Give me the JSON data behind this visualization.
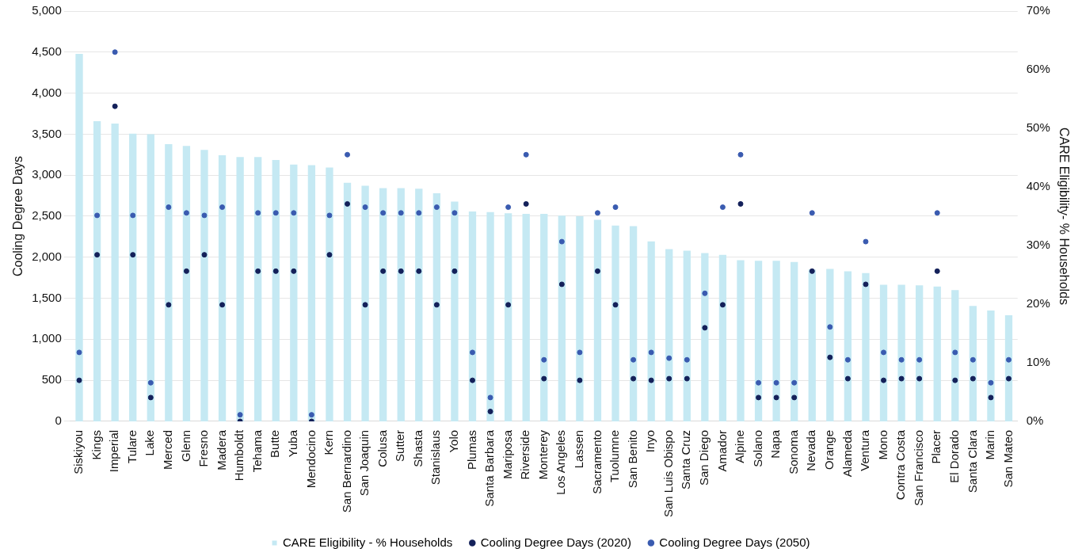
{
  "chart_data": {
    "type": "bar",
    "ylabel": "Cooling Degree Days",
    "y2label": "CARE Eligibility- % Households",
    "categories": [
      "Siskiyou",
      "Kings",
      "Imperial",
      "Tulare",
      "Lake",
      "Merced",
      "Glenn",
      "Fresno",
      "Madera",
      "Humboldt",
      "Tehama",
      "Butte",
      "Yuba",
      "Mendocino",
      "Kern",
      "San Bernardino",
      "San Joaquin",
      "Colusa",
      "Sutter",
      "Shasta",
      "Stanislaus",
      "Yolo",
      "Plumas",
      "Santa Barbara",
      "Mariposa",
      "Riverside",
      "Monterey",
      "Los Angeles",
      "Lassen",
      "Sacramento",
      "Tuolumne",
      "San Benito",
      "Inyo",
      "San Luis Obispo",
      "Santa Cruz",
      "San Diego",
      "Amador",
      "Alpine",
      "Solano",
      "Napa",
      "Sonoma",
      "Nevada",
      "Orange",
      "Alameda",
      "Ventura",
      "Mono",
      "Contra Costa",
      "San Francisco",
      "Placer",
      "El Dorado",
      "Santa Clara",
      "Marin",
      "San Mateo"
    ],
    "series": [
      {
        "name": "CARE Eligibility - % Households",
        "type": "bar",
        "axis": "y2",
        "color": "#c5e9f3",
        "values": [
          62.7,
          51.2,
          50.8,
          49.1,
          49.0,
          47.3,
          47.0,
          46.3,
          45.4,
          45.1,
          45.1,
          44.6,
          43.8,
          43.7,
          43.3,
          40.7,
          40.2,
          39.8,
          39.8,
          39.7,
          38.9,
          37.5,
          35.8,
          35.7,
          35.5,
          35.4,
          35.4,
          35.1,
          35.0,
          34.4,
          33.4,
          33.3,
          30.7,
          29.4,
          29.1,
          28.7,
          28.4,
          27.5,
          27.4,
          27.4,
          27.2,
          25.9,
          26.0,
          25.6,
          25.3,
          23.3,
          23.3,
          23.2,
          23.0,
          22.4,
          19.7,
          18.9,
          18.1
        ]
      },
      {
        "name": "Cooling Degree Days (2020)",
        "type": "scatter",
        "color": "#14215a",
        "values": [
          500,
          2030,
          3840,
          2030,
          290,
          1420,
          1830,
          2030,
          1420,
          0,
          1830,
          1830,
          1830,
          0,
          2030,
          2650,
          1420,
          1830,
          1830,
          1830,
          1420,
          1830,
          500,
          120,
          1420,
          2650,
          520,
          1670,
          500,
          1830,
          1420,
          520,
          500,
          520,
          520,
          1140,
          1420,
          2650,
          290,
          290,
          290,
          1830,
          780,
          520,
          1670,
          500,
          520,
          520,
          1830,
          500,
          520,
          290,
          520
        ]
      },
      {
        "name": "Cooling Degree Days (2050)",
        "type": "scatter",
        "color": "#3a5bb0",
        "values": [
          840,
          2510,
          4500,
          2510,
          470,
          2610,
          2540,
          2510,
          2610,
          80,
          2540,
          2540,
          2540,
          80,
          2510,
          3250,
          2610,
          2540,
          2540,
          2540,
          2610,
          2540,
          840,
          290,
          2610,
          3250,
          750,
          2190,
          840,
          2540,
          2610,
          750,
          840,
          770,
          750,
          1560,
          2610,
          3250,
          470,
          470,
          470,
          2540,
          1150,
          750,
          2190,
          840,
          750,
          750,
          2540,
          840,
          750,
          470,
          750
        ]
      }
    ],
    "ylim": [
      0,
      5000
    ],
    "yticks": [
      0,
      500,
      {
        "value": 1000,
        "label": "1,000"
      },
      {
        "value": 1500,
        "label": "1,500"
      },
      {
        "value": 2000,
        "label": "2,000"
      },
      {
        "value": 2500,
        "label": "2,500"
      },
      {
        "value": 3000,
        "label": "3,000"
      },
      {
        "value": 3500,
        "label": "3,500"
      },
      {
        "value": 4000,
        "label": "4,000"
      },
      {
        "value": 4500,
        "label": "4,500"
      },
      {
        "value": 5000,
        "label": "5,000"
      }
    ],
    "y2lim": [
      0,
      70
    ],
    "y2ticks": [
      {
        "value": 0,
        "label": "0%"
      },
      {
        "value": 10,
        "label": "10%"
      },
      {
        "value": 20,
        "label": "20%"
      },
      {
        "value": 30,
        "label": "30%"
      },
      {
        "value": 40,
        "label": "40%"
      },
      {
        "value": 50,
        "label": "50%"
      },
      {
        "value": 60,
        "label": "60%"
      },
      {
        "value": 70,
        "label": "70%"
      }
    ],
    "grid": "y",
    "legend": "bottom",
    "marker": "circle"
  }
}
